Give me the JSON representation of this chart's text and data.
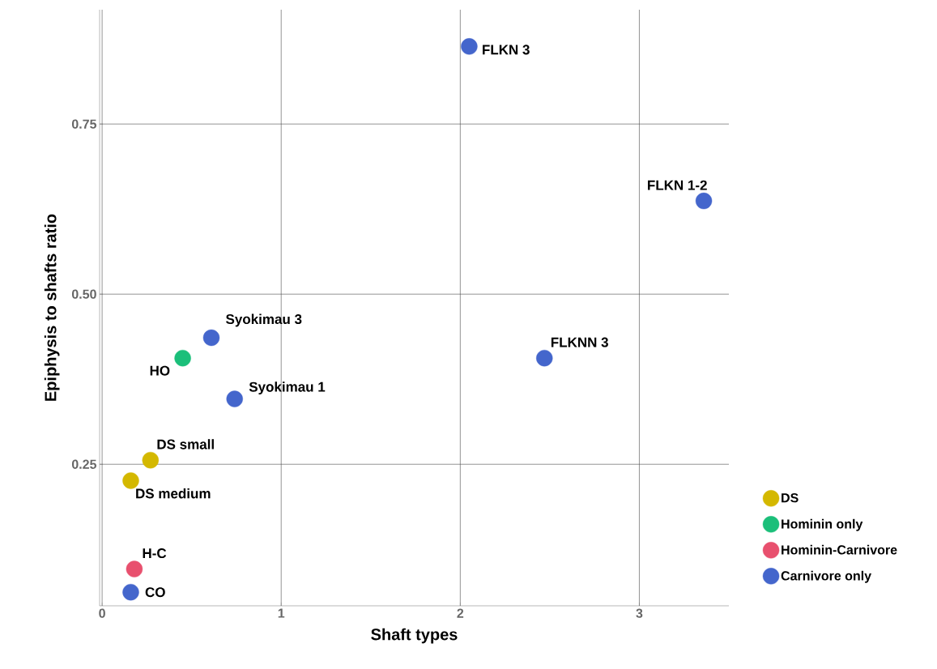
{
  "chart_data": {
    "type": "scatter",
    "xlabel": "Shaft types",
    "ylabel": "Epiphysis to shafts ratio",
    "xlim": [
      -0.014,
      3.5
    ],
    "ylim": [
      0.042,
      0.918
    ],
    "xticks": [
      0,
      1,
      2,
      3
    ],
    "yticks": [
      0.25,
      {
        "value": 0.5,
        "label": "0.50"
      },
      0.75
    ],
    "grid": true,
    "legend": "right",
    "marker": "circle",
    "series": [
      {
        "name": "DS",
        "color": "#d4b800",
        "x": [
          0.27,
          0.16
        ],
        "values": [
          0.256,
          0.226
        ]
      },
      {
        "name": "Hominin only",
        "color": "#1bbf7a",
        "x": [
          0.45
        ],
        "values": [
          0.406
        ]
      },
      {
        "name": "Hominin-Carnivore",
        "color": "#e8506e",
        "x": [
          0.18
        ],
        "values": [
          0.096
        ]
      },
      {
        "name": "Carnivore only",
        "color": "#4466cc",
        "x": [
          2.05,
          3.36,
          2.47,
          0.61,
          0.74,
          0.16
        ],
        "values": [
          0.864,
          0.637,
          0.406,
          0.436,
          0.346,
          0.062
        ]
      }
    ],
    "annotations": [
      {
        "text": "FLKN 3",
        "x": 2.05,
        "y": 0.864
      },
      {
        "text": "FLKN 1-2",
        "x": 3.36,
        "y": 0.637
      },
      {
        "text": "FLKNN 3",
        "x": 2.47,
        "y": 0.406
      },
      {
        "text": "Syokimau 3",
        "x": 0.61,
        "y": 0.436
      },
      {
        "text": "HO",
        "x": 0.45,
        "y": 0.406
      },
      {
        "text": "Syokimau 1",
        "x": 0.74,
        "y": 0.346
      },
      {
        "text": "DS small",
        "x": 0.27,
        "y": 0.256
      },
      {
        "text": "DS medium",
        "x": 0.16,
        "y": 0.226
      },
      {
        "text": "H-C",
        "x": 0.18,
        "y": 0.096
      },
      {
        "text": "CO",
        "x": 0.16,
        "y": 0.062
      }
    ]
  }
}
